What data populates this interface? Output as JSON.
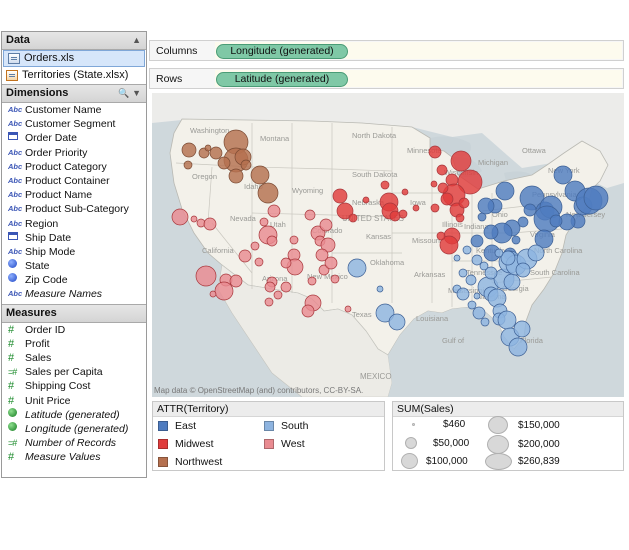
{
  "data_pane": {
    "title": "Data",
    "sources": [
      {
        "label": "Orders.xls",
        "selected": true
      },
      {
        "label": "Territories (State.xlsx)",
        "selected": false
      }
    ]
  },
  "dimensions": {
    "title": "Dimensions",
    "items": [
      {
        "label": "Customer Name",
        "icon": "abc"
      },
      {
        "label": "Customer Segment",
        "icon": "abc"
      },
      {
        "label": "Order Date",
        "icon": "date"
      },
      {
        "label": "Order Priority",
        "icon": "abc"
      },
      {
        "label": "Product Category",
        "icon": "abc"
      },
      {
        "label": "Product Container",
        "icon": "abc"
      },
      {
        "label": "Product Name",
        "icon": "abc"
      },
      {
        "label": "Product Sub-Category",
        "icon": "abc"
      },
      {
        "label": "Region",
        "icon": "abc"
      },
      {
        "label": "Ship Date",
        "icon": "date"
      },
      {
        "label": "Ship Mode",
        "icon": "abc"
      },
      {
        "label": "State",
        "icon": "globe"
      },
      {
        "label": "Zip Code",
        "icon": "globe"
      },
      {
        "label": "Measure Names",
        "icon": "abc",
        "italic": true
      }
    ]
  },
  "measures": {
    "title": "Measures",
    "items": [
      {
        "label": "Order ID",
        "icon": "#"
      },
      {
        "label": "Profit",
        "icon": "#"
      },
      {
        "label": "Sales",
        "icon": "#"
      },
      {
        "label": "Sales per Capita",
        "icon": "=#"
      },
      {
        "label": "Shipping Cost",
        "icon": "#"
      },
      {
        "label": "Unit Price",
        "icon": "#"
      },
      {
        "label": "Latitude (generated)",
        "icon": "geo",
        "italic": true
      },
      {
        "label": "Longitude (generated)",
        "icon": "geo",
        "italic": true
      },
      {
        "label": "Number of Records",
        "icon": "=#",
        "italic": true
      },
      {
        "label": "Measure Values",
        "icon": "#",
        "italic": true
      }
    ]
  },
  "shelves": {
    "columns": {
      "label": "Columns",
      "pill": "Longitude (generated)"
    },
    "rows": {
      "label": "Rows",
      "pill": "Latitude (generated)"
    }
  },
  "map": {
    "attribution": "Map data © OpenStreetMap (and) contributors, CC-BY-SA.",
    "state_labels": [
      "Washington",
      "Montana",
      "North Dakota",
      "Minnesota",
      "Oregon",
      "Idaho",
      "Wyoming",
      "South Dakota",
      "Wisconsin",
      "Michigan",
      "Nebraska",
      "Iowa",
      "Nevada",
      "Utah",
      "Colorado",
      "Kansas",
      "Missouri",
      "Illinois",
      "Indiana",
      "Ohio",
      "Pennsylvania",
      "New York",
      "California",
      "Arizona",
      "New Mexico",
      "Oklahoma",
      "Arkansas",
      "Kentucky",
      "Tennessee",
      "Virginia",
      "Texas",
      "Louisiana",
      "Mississippi",
      "Alabama",
      "Georgia",
      "South Carolina",
      "North Carolina",
      "Florida",
      "New Jersey",
      "MEXICO",
      "UNITED STATES",
      "Ottawa",
      "Gulf of"
    ]
  },
  "territory_legend": {
    "title": "ATTR(Territory)",
    "items": [
      {
        "label": "East",
        "color": "#4f7cc0"
      },
      {
        "label": "South",
        "color": "#8eb4e0"
      },
      {
        "label": "Midwest",
        "color": "#e03c3c"
      },
      {
        "label": "West",
        "color": "#e98b91"
      },
      {
        "label": "Northwest",
        "color": "#b5704f"
      }
    ]
  },
  "size_legend": {
    "title": "SUM(Sales)",
    "items": [
      {
        "label": "$460",
        "value": 460
      },
      {
        "label": "$150,000",
        "value": 150000
      },
      {
        "label": "$50,000",
        "value": 50000
      },
      {
        "label": "$200,000",
        "value": 200000
      },
      {
        "label": "$100,000",
        "value": 100000
      },
      {
        "label": "$260,839",
        "value": 260839
      }
    ]
  }
}
